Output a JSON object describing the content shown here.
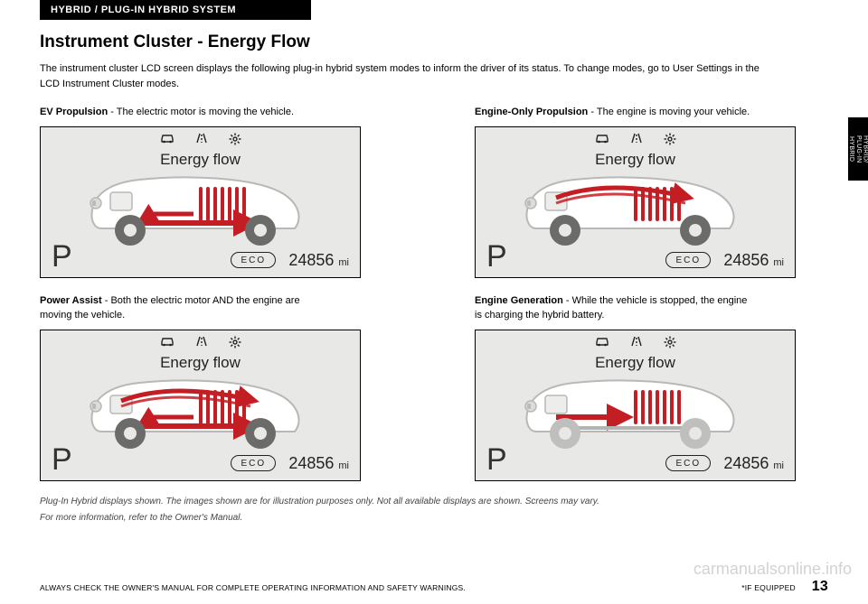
{
  "header": {
    "title": "HYBRID / PLUG-IN HYBRID SYSTEM"
  },
  "sideTab": "HYBRID/\nPLUG-IN\nHYBRID",
  "page": {
    "title": "Instrument Cluster - Energy Flow",
    "intro": "The instrument cluster LCD screen displays the following plug-in hybrid system modes to inform the driver of its status. To change modes, go to User Settings in the LCD Instrument Cluster modes."
  },
  "screens": {
    "common": {
      "title": "Energy flow",
      "gear": "P",
      "eco": "ECO",
      "odometer": "24856",
      "odoUnit": "mi",
      "bg": "#e8e8e6",
      "carFill": "#ffffff",
      "carStroke": "#b8b8b6",
      "wheelMuted": "#bfbfbd",
      "wheelActive": "#6b6b69",
      "flowRed": "#c41e25",
      "flowGrey": "#b3b3b1",
      "batteryGrey": "#9a9a98"
    },
    "ev": {
      "labelBold": "EV Propulsion",
      "labelRest": " - The electric motor is moving the vehicle.",
      "wheelsActive": true,
      "motorToWheels": "red",
      "batteryToMotor": "red",
      "engineToWheels": "none"
    },
    "engine": {
      "labelBold": "Engine-Only Propulsion",
      "labelRest": " - The engine is moving your vehicle.",
      "wheelsActive": true,
      "motorToWheels": "none",
      "batteryToMotor": "none",
      "engineToWheels": "red"
    },
    "assist": {
      "labelBold": "Power Assist",
      "labelRest": " - Both the electric motor AND the engine are moving the vehicle.",
      "wheelsActive": true,
      "motorToWheels": "red",
      "batteryToMotor": "red",
      "engineToWheels": "red"
    },
    "gen": {
      "labelBold": "Engine Generation",
      "labelRest": " - While the vehicle is stopped, the engine is charging the hybrid battery.",
      "wheelsActive": false,
      "motorToWheels": "none",
      "batteryToMotor": "none",
      "engineToWheels": "none",
      "engineToBattery": "red"
    }
  },
  "footnotes": {
    "l1": "Plug-In Hybrid displays shown. The images shown are for illustration purposes only. Not all available displays are shown. Screens may vary.",
    "l2": "For more information, refer to the Owner's Manual."
  },
  "footer": {
    "left": "ALWAYS CHECK THE OWNER'S MANUAL FOR COMPLETE OPERATING INFORMATION AND SAFETY WARNINGS.",
    "right": "*IF EQUIPPED",
    "page": "13"
  },
  "watermark": "carmanualsonline.info"
}
